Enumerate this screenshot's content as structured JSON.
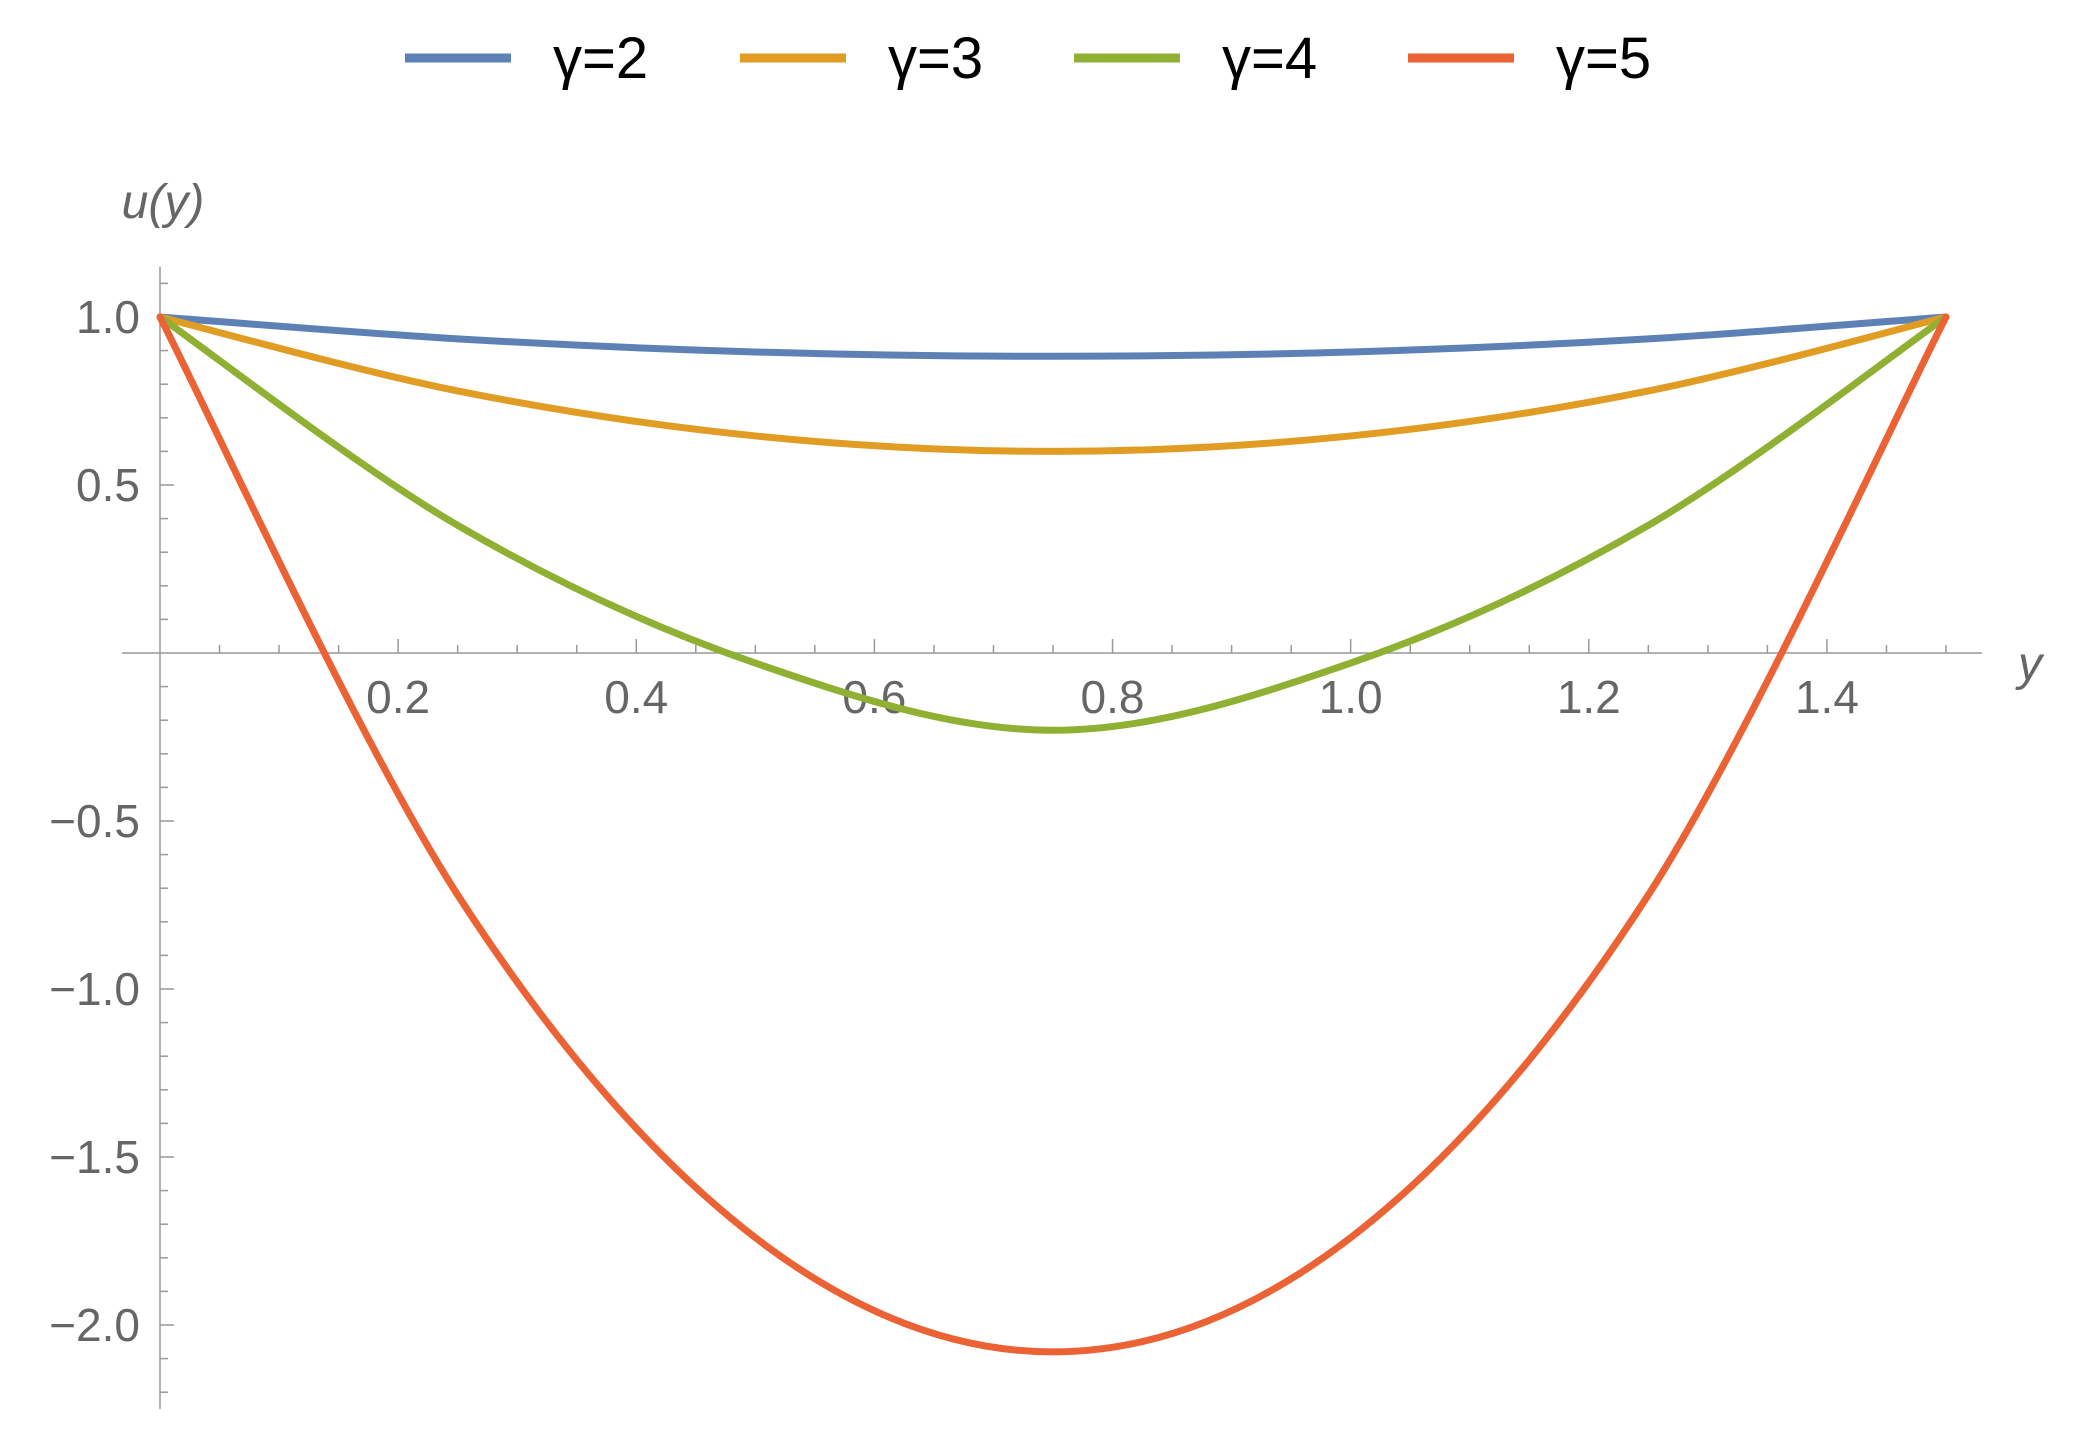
{
  "chart_data": {
    "type": "line",
    "xlabel": "y",
    "ylabel": "u(y)",
    "xlim": [
      0,
      1.5
    ],
    "ylim": [
      -2.25,
      1.15
    ],
    "x_ticks": [
      0.2,
      0.4,
      0.6,
      0.8,
      1.0,
      1.2,
      1.4
    ],
    "x_tick_labels": [
      "0.2",
      "0.4",
      "0.6",
      "0.8",
      "1.0",
      "1.2",
      "1.4"
    ],
    "y_ticks": [
      1.0,
      0.5,
      -0.5,
      -1.0,
      -1.5,
      -2.0
    ],
    "y_tick_labels": [
      "1.0",
      "0.5",
      "−0.5",
      "−1.0",
      "−1.5",
      "−2.0"
    ],
    "grid": false,
    "legend_position": "top",
    "series": [
      {
        "name": "γ=2",
        "color": "#5e81b5",
        "x": [
          0,
          0.25,
          0.5,
          0.75,
          1.0,
          1.25,
          1.5
        ],
        "y": [
          1.0,
          0.935,
          0.896,
          0.883,
          0.896,
          0.935,
          1.0
        ]
      },
      {
        "name": "γ=3",
        "color": "#e19c24",
        "x": [
          0,
          0.25,
          0.5,
          0.75,
          1.0,
          1.25,
          1.5
        ],
        "y": [
          1.0,
          0.78,
          0.646,
          0.6,
          0.646,
          0.78,
          1.0
        ]
      },
      {
        "name": "γ=4",
        "color": "#8fb032",
        "x": [
          0,
          0.25,
          0.5,
          0.75,
          1.0,
          1.25,
          1.5
        ],
        "y": [
          1.0,
          0.38,
          -0.03,
          -0.23,
          -0.03,
          0.38,
          1.0
        ]
      },
      {
        "name": "γ=5",
        "color": "#eb6235",
        "x": [
          0,
          0.25,
          0.5,
          0.75,
          1.0,
          1.25,
          1.5
        ],
        "y": [
          1.0,
          -0.72,
          -1.74,
          -2.08,
          -1.74,
          -0.72,
          1.0
        ]
      }
    ]
  }
}
